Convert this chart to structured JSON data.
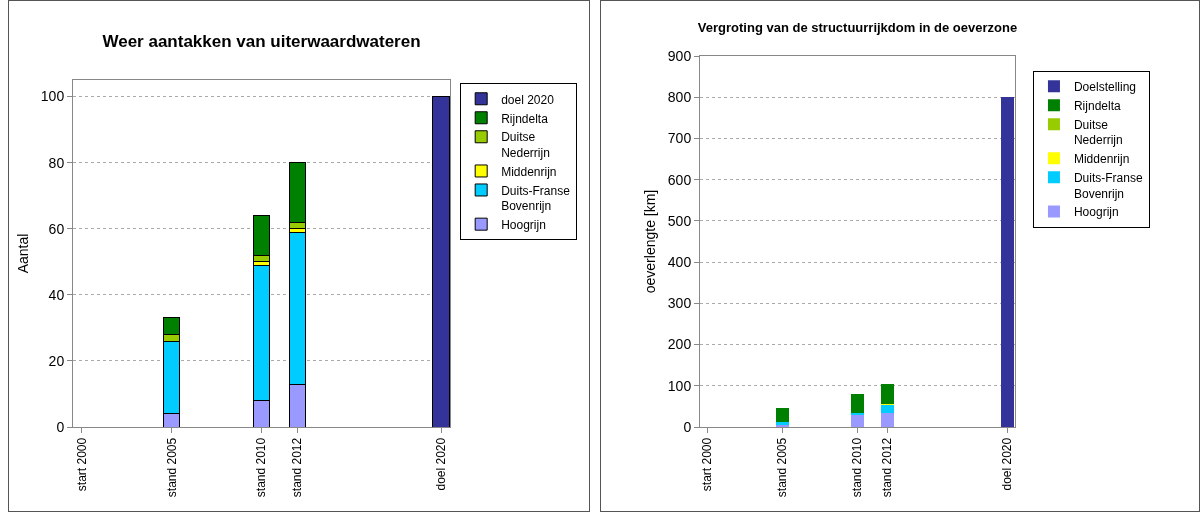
{
  "chart_data": [
    {
      "type": "bar",
      "title": "Weer aantakken van uiterwaardwateren",
      "ylabel": "Aantal",
      "stacked": true,
      "categories": [
        "start 2000",
        null,
        null,
        null,
        null,
        "stand 2005",
        null,
        null,
        null,
        null,
        "stand 2010",
        null,
        "stand 2012",
        null,
        null,
        null,
        null,
        null,
        null,
        null,
        "doel 2020"
      ],
      "ylim": [
        0,
        105
      ],
      "yticks": [
        0,
        20,
        40,
        60,
        80,
        100
      ],
      "grid": "y",
      "legend": "right",
      "series": [
        {
          "name": "Hoogrijn",
          "color": "#9999ff",
          "values": [
            null,
            null,
            null,
            null,
            null,
            4,
            null,
            null,
            null,
            null,
            8,
            null,
            13,
            null,
            null,
            null,
            null,
            null,
            null,
            null,
            null
          ]
        },
        {
          "name": "Duits-Franse Bovenrijn",
          "color": "#00ccff",
          "values": [
            null,
            null,
            null,
            null,
            null,
            22,
            null,
            null,
            null,
            null,
            41,
            null,
            46,
            null,
            null,
            null,
            null,
            null,
            null,
            null,
            null
          ]
        },
        {
          "name": "Middenrijn",
          "color": "#ffff00",
          "values": [
            null,
            null,
            null,
            null,
            null,
            0,
            null,
            null,
            null,
            null,
            1,
            null,
            1,
            null,
            null,
            null,
            null,
            null,
            null,
            null,
            null
          ]
        },
        {
          "name": "Duitse Nederrijn",
          "color": "#99cc00",
          "values": [
            null,
            null,
            null,
            null,
            null,
            2,
            null,
            null,
            null,
            null,
            2,
            null,
            2,
            null,
            null,
            null,
            null,
            null,
            null,
            null,
            null
          ]
        },
        {
          "name": "Rijndelta",
          "color": "#008000",
          "values": [
            null,
            null,
            null,
            null,
            null,
            5,
            null,
            null,
            null,
            null,
            12,
            null,
            18,
            null,
            null,
            null,
            null,
            null,
            null,
            null,
            null
          ]
        },
        {
          "name": "doel 2020",
          "color": "#333399",
          "values": [
            null,
            null,
            null,
            null,
            null,
            null,
            null,
            null,
            null,
            null,
            null,
            null,
            null,
            null,
            null,
            null,
            null,
            null,
            null,
            null,
            100
          ]
        }
      ]
    },
    {
      "type": "bar",
      "title": "Vergroting van de structuurrijkdom in de oeverzone",
      "ylabel": "oeverlengte [km]",
      "stacked": true,
      "categories": [
        "start 2000",
        null,
        null,
        null,
        null,
        "stand 2005",
        null,
        null,
        null,
        null,
        "stand 2010",
        null,
        "stand 2012",
        null,
        null,
        null,
        null,
        null,
        null,
        null,
        "doel 2020"
      ],
      "ylim": [
        0,
        900
      ],
      "yticks": [
        0,
        100,
        200,
        300,
        400,
        500,
        600,
        700,
        800,
        900
      ],
      "grid": "y",
      "legend": "right",
      "series": [
        {
          "name": "Hoogrijn",
          "color": "#9999ff",
          "values": [
            null,
            null,
            null,
            null,
            null,
            5,
            null,
            null,
            null,
            null,
            29,
            null,
            34,
            null,
            null,
            null,
            null,
            null,
            null,
            null,
            null
          ]
        },
        {
          "name": "Duits-Franse Bovenrijn",
          "color": "#00ccff",
          "values": [
            null,
            null,
            null,
            null,
            null,
            6,
            null,
            null,
            null,
            null,
            4,
            null,
            19,
            null,
            null,
            null,
            null,
            null,
            null,
            null,
            null
          ]
        },
        {
          "name": "Middenrijn",
          "color": "#ffff00",
          "values": [
            null,
            null,
            null,
            null,
            null,
            0,
            null,
            null,
            null,
            null,
            0,
            null,
            2,
            null,
            null,
            null,
            null,
            null,
            null,
            null,
            null
          ]
        },
        {
          "name": "Duitse Nederrijn",
          "color": "#99cc00",
          "values": [
            null,
            null,
            null,
            null,
            null,
            0,
            null,
            null,
            null,
            null,
            0,
            null,
            0,
            null,
            null,
            null,
            null,
            null,
            null,
            null,
            null
          ]
        },
        {
          "name": "Rijndelta",
          "color": "#008000",
          "values": [
            null,
            null,
            null,
            null,
            null,
            36,
            null,
            null,
            null,
            null,
            48,
            null,
            49,
            null,
            null,
            null,
            null,
            null,
            null,
            null,
            null
          ]
        },
        {
          "name": "Doelstelling",
          "color": "#333399",
          "values": [
            null,
            null,
            null,
            null,
            null,
            null,
            null,
            null,
            null,
            null,
            null,
            null,
            null,
            null,
            null,
            null,
            null,
            null,
            null,
            null,
            800
          ]
        }
      ]
    }
  ]
}
